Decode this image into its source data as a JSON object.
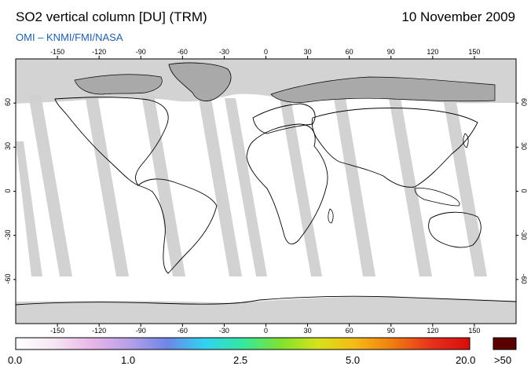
{
  "header": {
    "title": "SO2 vertical column [DU] (TRM)",
    "date": "10 November 2009",
    "credit": "OMI  –  KNMI/FMI/NASA"
  },
  "map": {
    "lon_ticks": [
      "-150",
      "-120",
      "-90",
      "-60",
      "-30",
      "0",
      "30",
      "60",
      "90",
      "120",
      "150"
    ],
    "lat_ticks": [
      "60",
      "30",
      "0",
      "-30",
      "-60"
    ],
    "colors": {
      "no_data": "#d3d3d3",
      "land_polar": "#c8c8c8",
      "orbit_gap": "#d0d0d0"
    }
  },
  "colorbar": {
    "labels": [
      "0.0",
      "1.0",
      "2.5",
      "5.0",
      "20.0"
    ],
    "overflow_label": ">50",
    "overflow_color": "#5a0000",
    "stops": [
      "#ffffff",
      "#f6e6f3",
      "#e9b6e8",
      "#b7a0e8",
      "#6f86e8",
      "#2fd3f0",
      "#34e8a0",
      "#7fe22f",
      "#d8e21a",
      "#f5b915",
      "#f07a10",
      "#e8301c",
      "#d80c0c"
    ]
  }
}
